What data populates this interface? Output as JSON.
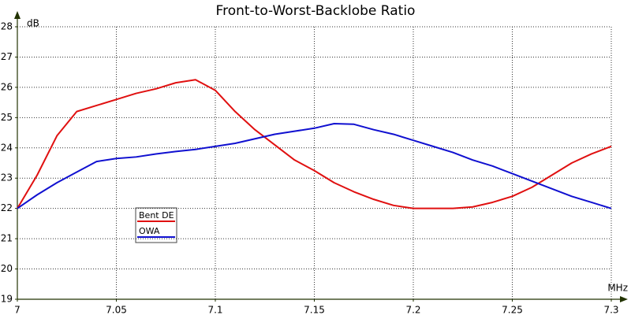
{
  "chart_data": {
    "type": "line",
    "title": "Front-to-Worst-Backlobe Ratio",
    "y_label": "dB",
    "x_label": "MHz",
    "x": [
      7.0,
      7.01,
      7.02,
      7.03,
      7.04,
      7.05,
      7.06,
      7.07,
      7.08,
      7.09,
      7.1,
      7.11,
      7.12,
      7.13,
      7.14,
      7.15,
      7.16,
      7.17,
      7.18,
      7.19,
      7.2,
      7.21,
      7.22,
      7.23,
      7.24,
      7.25,
      7.26,
      7.27,
      7.28,
      7.29,
      7.3
    ],
    "series": [
      {
        "name": "Bent DE",
        "color": "#e01010",
        "values": [
          22.0,
          23.1,
          24.4,
          25.2,
          25.4,
          25.6,
          25.8,
          25.95,
          26.15,
          26.25,
          25.9,
          25.2,
          24.6,
          24.1,
          23.6,
          23.25,
          22.85,
          22.55,
          22.3,
          22.1,
          22.0,
          22.0,
          22.0,
          22.05,
          22.2,
          22.4,
          22.7,
          23.1,
          23.5,
          23.8,
          24.05
        ]
      },
      {
        "name": "OWA",
        "color": "#1010d0",
        "values": [
          22.0,
          22.45,
          22.85,
          23.2,
          23.55,
          23.65,
          23.7,
          23.8,
          23.88,
          23.95,
          24.05,
          24.15,
          24.3,
          24.45,
          24.55,
          24.65,
          24.8,
          24.78,
          24.6,
          24.45,
          24.25,
          24.05,
          23.85,
          23.6,
          23.4,
          23.15,
          22.9,
          22.65,
          22.4,
          22.2,
          22.0
        ]
      }
    ],
    "xlim": [
      7.0,
      7.3
    ],
    "xticks": [
      7,
      7.05,
      7.1,
      7.15,
      7.2,
      7.25,
      7.3
    ],
    "ylim": [
      19,
      28
    ],
    "yticks": [
      19,
      20,
      21,
      22,
      23,
      24,
      25,
      26,
      27,
      28
    ],
    "grid": true,
    "legend_position": "lower left"
  }
}
